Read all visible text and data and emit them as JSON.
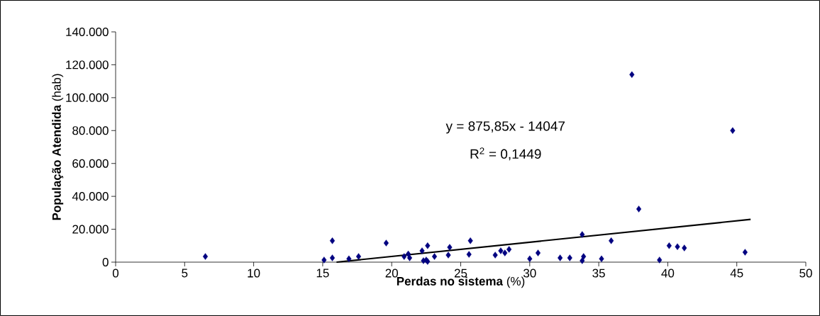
{
  "chart_data": {
    "type": "scatter",
    "xlabel": "**Perdas no sistema** (%)",
    "ylabel": "**População Atendida** (hab)",
    "xlim": [
      0,
      50
    ],
    "xticks": [
      0,
      5,
      10,
      15,
      20,
      25,
      30,
      35,
      40,
      45,
      50
    ],
    "ylim": [
      0,
      140000
    ],
    "yticks": [
      0,
      {
        "value": 20000,
        "label": "20.000"
      },
      {
        "value": 40000,
        "label": "40.000"
      },
      {
        "value": 60000,
        "label": "60.000"
      },
      {
        "value": 80000,
        "label": "80.000"
      },
      {
        "value": 100000,
        "label": "100.000"
      },
      {
        "value": 120000,
        "label": "120.000"
      },
      {
        "value": 140000,
        "label": "140.000"
      }
    ],
    "grid": false,
    "marker": "diamond",
    "annotations": [
      "y = 875,85x - 14047",
      "R$^{2}$ = 0,1449"
    ],
    "series": [
      {
        "color": "#000080",
        "x": [
          6.5,
          15.1,
          15.7,
          15.7,
          16.9,
          17.6,
          19.6,
          20.9,
          21.2,
          21.3,
          22.2,
          22.3,
          22.6,
          22.5,
          22.6,
          23.1,
          24.1,
          24.2,
          25.6,
          25.7,
          27.5,
          27.9,
          28.2,
          28.5,
          30.0,
          30.6,
          32.2,
          32.9,
          33.8,
          33.9,
          33.8,
          35.2,
          35.9,
          37.4,
          37.9,
          39.4,
          40.1,
          40.7,
          41.2,
          44.7,
          45.6
        ],
        "values": [
          3400,
          1300,
          13000,
          2600,
          2000,
          3400,
          11600,
          3400,
          5000,
          2600,
          6900,
          900,
          10000,
          1300,
          400,
          3400,
          4300,
          9000,
          4700,
          13000,
          4300,
          6900,
          5600,
          7800,
          2000,
          5600,
          2600,
          2600,
          900,
          3400,
          16800,
          2000,
          13000,
          114000,
          32300,
          1300,
          10000,
          9400,
          8600,
          80000,
          6000
        ]
      },
      {
        "type": "line",
        "color": "#000000",
        "marker": "none",
        "line_style": "solid",
        "x": [
          16,
          46
        ],
        "values": [
          0,
          26000
        ]
      }
    ]
  }
}
